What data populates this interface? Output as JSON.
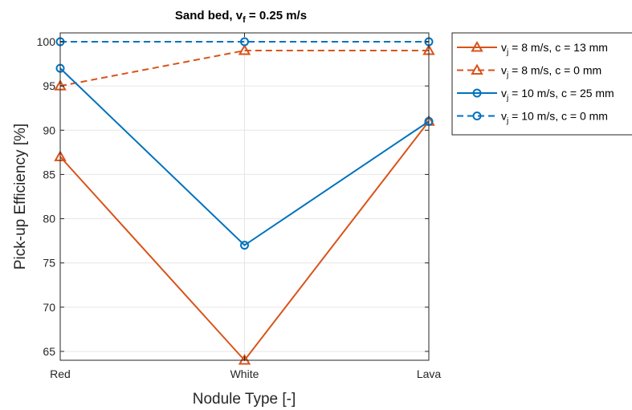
{
  "chart_data": {
    "type": "line",
    "title": {
      "main": "Sand bed, v",
      "sub": "f",
      "tail": " = 0.25 m/s"
    },
    "xlabel": "Nodule Type [-]",
    "ylabel": "Pick-up Efficiency [%]",
    "categories": [
      "Red",
      "White",
      "Lava"
    ],
    "ylim": [
      64,
      101
    ],
    "yticks": [
      65,
      70,
      75,
      80,
      85,
      90,
      95,
      100
    ],
    "grid": true,
    "legend_position": "outside-right",
    "series": [
      {
        "name": "v_j = 8 m/s, c = 13 mm",
        "legend": {
          "v": "v",
          "sub": "j",
          "rest": " = 8 m/s, c = 13 mm"
        },
        "values": [
          87,
          64,
          91
        ],
        "color": "#D95319",
        "line_style": "solid",
        "marker": "triangle"
      },
      {
        "name": "v_j = 8 m/s, c = 0 mm",
        "legend": {
          "v": "v",
          "sub": "j",
          "rest": " = 8 m/s, c = 0 mm"
        },
        "values": [
          95,
          99,
          99
        ],
        "color": "#D95319",
        "line_style": "dashed",
        "marker": "triangle"
      },
      {
        "name": "v_j = 10 m/s, c = 25 mm",
        "legend": {
          "v": "v",
          "sub": "j",
          "rest": " = 10 m/s, c = 25 mm"
        },
        "values": [
          97,
          77,
          91
        ],
        "color": "#0072BD",
        "line_style": "solid",
        "marker": "circle"
      },
      {
        "name": "v_j = 10 m/s, c = 0 mm",
        "legend": {
          "v": "v",
          "sub": "j",
          "rest": " = 10 m/s, c = 0 mm"
        },
        "values": [
          100,
          100,
          100
        ],
        "color": "#0072BD",
        "line_style": "dashed",
        "marker": "circle"
      }
    ]
  }
}
